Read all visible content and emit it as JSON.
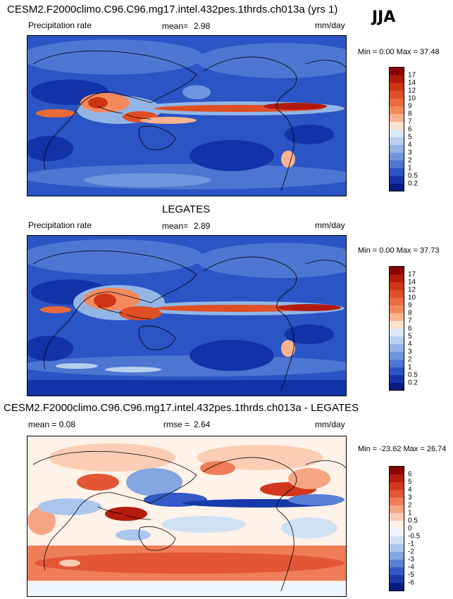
{
  "season": "JJA",
  "panels": [
    {
      "id": "model",
      "title": "CESM2.F2000climo.C96.C96.mg17.intel.432pes.1thrds.ch013a (yrs 1)",
      "left_label": "Precipitation rate",
      "stat_label": "mean=",
      "stat_value": "2.98",
      "units": "mm/day",
      "minmax": "Min =   0.00 Max = 37.48",
      "levels": [
        "17",
        "14",
        "12",
        "10",
        "9",
        "8",
        "7",
        "6",
        "5",
        "4",
        "3",
        "2",
        "1",
        "0.5",
        "0.2"
      ],
      "colors": [
        "#8b0000",
        "#b11a0b",
        "#cc3414",
        "#e04e24",
        "#ea6a3c",
        "#f38a5c",
        "#f9b391",
        "#fde1cc",
        "#dbe8f7",
        "#b7d0ef",
        "#93b5e6",
        "#6e96dc",
        "#4d76d2",
        "#2b54c4",
        "#1233a8",
        "#061b80"
      ]
    },
    {
      "id": "obs",
      "title": "LEGATES",
      "left_label": "Precipitation rate",
      "stat_label": "mean=",
      "stat_value": "2.89",
      "units": "mm/day",
      "minmax": "Min =   0.00 Max = 37.73",
      "levels": [
        "17",
        "14",
        "12",
        "10",
        "9",
        "8",
        "7",
        "6",
        "5",
        "4",
        "3",
        "2",
        "1",
        "0.5",
        "0.2"
      ],
      "colors": [
        "#8b0000",
        "#b11a0b",
        "#cc3414",
        "#e04e24",
        "#ea6a3c",
        "#f38a5c",
        "#f9b391",
        "#fde1cc",
        "#dbe8f7",
        "#b7d0ef",
        "#93b5e6",
        "#6e96dc",
        "#4d76d2",
        "#2b54c4",
        "#1233a8",
        "#061b80"
      ]
    },
    {
      "id": "diff",
      "title": "CESM2.F2000climo.C96.C96.mg17.intel.432pes.1thrds.ch013a - LEGATES",
      "left_label": "mean =   0.08",
      "stat_label": "rmse =",
      "stat_value": "2.64",
      "units": "mm/day",
      "minmax": "Min = -23.62 Max =  26.74",
      "levels": [
        "6",
        "5",
        "4",
        "3",
        "2",
        "1",
        "0.5",
        "0",
        "-0.5",
        "-1",
        "-2",
        "-3",
        "-4",
        "-5",
        "-6"
      ],
      "colors": [
        "#8b0000",
        "#b31c0f",
        "#d2361c",
        "#e25636",
        "#ef7d58",
        "#f6a583",
        "#fbcdb4",
        "#fff2e8",
        "#eef4fb",
        "#d1e1f4",
        "#abc6ec",
        "#84a6e2",
        "#5a80d5",
        "#3459c4",
        "#163aaa",
        "#061b80"
      ]
    }
  ]
}
